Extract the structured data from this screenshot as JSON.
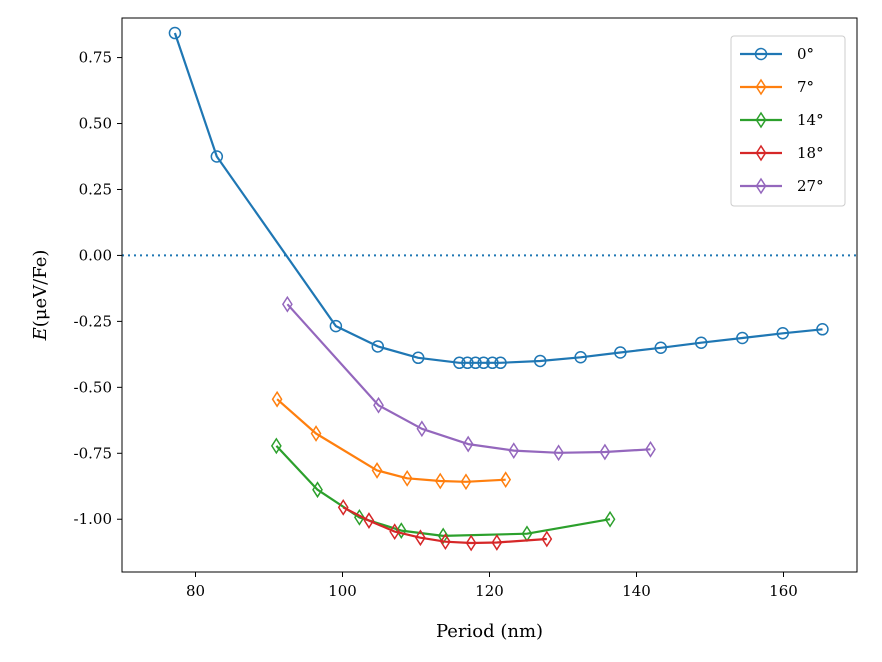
{
  "chart_data": {
    "type": "line",
    "xlabel": "Period (nm)",
    "ylabel_parts": [
      "E",
      "(μeV/Fe)"
    ],
    "xlim": [
      70,
      170
    ],
    "ylim": [
      -1.2,
      0.9
    ],
    "xticks": [
      80,
      100,
      120,
      140,
      160
    ],
    "xtick_labels": [
      "80",
      "100",
      "120",
      "140",
      "160"
    ],
    "yticks": [
      0.75,
      0.5,
      0.25,
      0.0,
      -0.25,
      -0.5,
      -0.75,
      -1.0
    ],
    "ytick_labels": [
      "0.75",
      "0.50",
      "0.25",
      "0.00",
      "-0.25",
      "-0.50",
      "-0.75",
      "-1.00"
    ],
    "reference_line": {
      "y": 0,
      "style": "dotted",
      "color": "#1f77b4"
    },
    "legend_position": "top-right",
    "series": [
      {
        "name": "0°",
        "color": "#1f77b4",
        "marker": "circle",
        "x": [
          77.2,
          82.9,
          99.1,
          104.8,
          110.3,
          115.9,
          117.0,
          118.1,
          119.2,
          120.4,
          121.5,
          126.9,
          132.4,
          137.8,
          143.3,
          148.8,
          154.4,
          159.9,
          165.3
        ],
        "y": [
          0.843,
          0.375,
          -0.268,
          -0.345,
          -0.388,
          -0.407,
          -0.407,
          -0.407,
          -0.407,
          -0.407,
          -0.407,
          -0.4,
          -0.386,
          -0.368,
          -0.35,
          -0.331,
          -0.313,
          -0.295,
          -0.28
        ]
      },
      {
        "name": "7°",
        "color": "#ff7f0e",
        "marker": "thin_diamond",
        "x": [
          91.1,
          96.4,
          104.7,
          108.8,
          113.3,
          116.8,
          122.2
        ],
        "y": [
          -0.545,
          -0.675,
          -0.815,
          -0.845,
          -0.855,
          -0.858,
          -0.85
        ]
      },
      {
        "name": "14°",
        "color": "#2ca02c",
        "marker": "thin_diamond",
        "x": [
          91.0,
          96.6,
          102.3,
          108.0,
          113.7,
          125.1,
          136.4
        ],
        "y": [
          -0.722,
          -0.888,
          -0.993,
          -1.043,
          -1.063,
          -1.055,
          -1.0
        ]
      },
      {
        "name": "18°",
        "color": "#d62728",
        "marker": "thin_diamond",
        "x": [
          100.1,
          103.6,
          107.1,
          110.6,
          114.0,
          117.5,
          121.0,
          127.8
        ],
        "y": [
          -0.955,
          -1.005,
          -1.047,
          -1.07,
          -1.085,
          -1.09,
          -1.088,
          -1.075
        ]
      },
      {
        "name": "27°",
        "color": "#9467bd",
        "marker": "thin_diamond",
        "x": [
          92.5,
          104.9,
          110.8,
          117.1,
          123.3,
          129.4,
          135.7,
          141.9
        ],
        "y": [
          -0.185,
          -0.568,
          -0.657,
          -0.715,
          -0.74,
          -0.748,
          -0.745,
          -0.735
        ]
      }
    ]
  }
}
